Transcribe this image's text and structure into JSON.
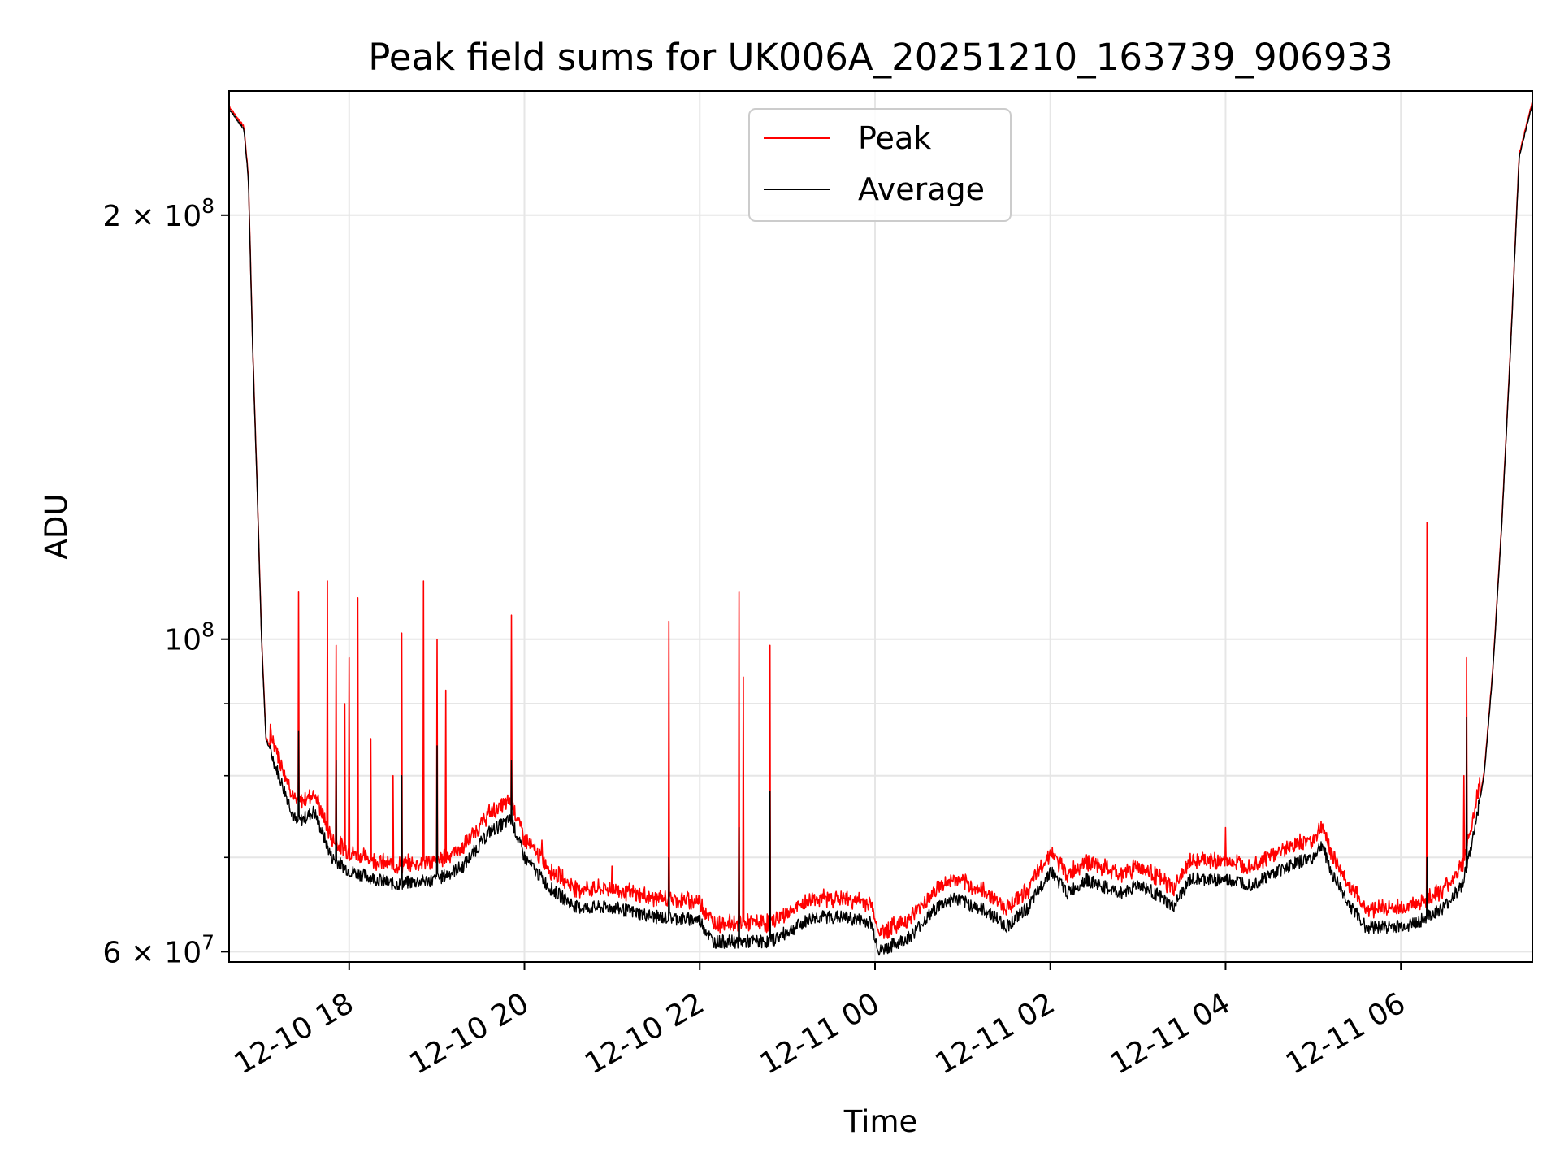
{
  "chart_data": {
    "type": "line",
    "scale_y": "log",
    "title": "Peak field sums for UK006A_20251210_163739_906933",
    "xlabel": "Time",
    "ylabel": "ADU",
    "xlim_hours": [
      16.63,
      31.5
    ],
    "ylim": [
      59000000,
      245000000
    ],
    "grid": true,
    "legend_position": "top-center",
    "x_ticks": [
      {
        "hours": 18,
        "label": "12-10 18"
      },
      {
        "hours": 20,
        "label": "12-10 20"
      },
      {
        "hours": 22,
        "label": "12-10 22"
      },
      {
        "hours": 24,
        "label": "12-11 00"
      },
      {
        "hours": 26,
        "label": "12-11 02"
      },
      {
        "hours": 28,
        "label": "12-11 04"
      },
      {
        "hours": 30,
        "label": "12-11 06"
      }
    ],
    "y_ticks": [
      {
        "value": 60000000,
        "base": "6 × 10",
        "exp": "7"
      },
      {
        "value": 100000000,
        "base": "10",
        "exp": "8"
      },
      {
        "value": 200000000,
        "base": "2 × 10",
        "exp": "8"
      }
    ],
    "y_minor_ticks": [
      70000000,
      80000000,
      90000000
    ],
    "series": [
      {
        "name": "Peak",
        "color": "#ff0000"
      },
      {
        "name": "Average",
        "color": "#000000"
      }
    ],
    "average_trend": [
      [
        16.63,
        238000000
      ],
      [
        16.8,
        230000000
      ],
      [
        16.85,
        212000000
      ],
      [
        16.9,
        160000000
      ],
      [
        16.95,
        128000000
      ],
      [
        17.0,
        100000000
      ],
      [
        17.05,
        85000000
      ],
      [
        17.2,
        80000000
      ],
      [
        17.4,
        74000000
      ],
      [
        17.6,
        75500000
      ],
      [
        17.8,
        70000000
      ],
      [
        18.0,
        68500000
      ],
      [
        18.5,
        67000000
      ],
      [
        19.0,
        67500000
      ],
      [
        19.3,
        69000000
      ],
      [
        19.6,
        73000000
      ],
      [
        19.85,
        74500000
      ],
      [
        20.0,
        70000000
      ],
      [
        20.3,
        66500000
      ],
      [
        20.6,
        64500000
      ],
      [
        21.0,
        64500000
      ],
      [
        21.5,
        63500000
      ],
      [
        22.0,
        63200000
      ],
      [
        22.15,
        61000000
      ],
      [
        22.8,
        61000000
      ],
      [
        23.3,
        63500000
      ],
      [
        23.6,
        63500000
      ],
      [
        23.95,
        63000000
      ],
      [
        24.05,
        60000000
      ],
      [
        24.4,
        61500000
      ],
      [
        24.7,
        64500000
      ],
      [
        24.9,
        65500000
      ],
      [
        25.3,
        64000000
      ],
      [
        25.5,
        62500000
      ],
      [
        25.75,
        64500000
      ],
      [
        26.0,
        68500000
      ],
      [
        26.2,
        66000000
      ],
      [
        26.4,
        67500000
      ],
      [
        26.8,
        66000000
      ],
      [
        27.0,
        67000000
      ],
      [
        27.2,
        66000000
      ],
      [
        27.4,
        64500000
      ],
      [
        27.6,
        67500000
      ],
      [
        28.0,
        67500000
      ],
      [
        28.3,
        67000000
      ],
      [
        28.7,
        69000000
      ],
      [
        29.0,
        70000000
      ],
      [
        29.1,
        71500000
      ],
      [
        29.2,
        68500000
      ],
      [
        29.4,
        65000000
      ],
      [
        29.6,
        62500000
      ],
      [
        29.8,
        62500000
      ],
      [
        30.0,
        62500000
      ],
      [
        30.2,
        63000000
      ],
      [
        30.5,
        64500000
      ],
      [
        30.7,
        67000000
      ],
      [
        30.8,
        71000000
      ],
      [
        30.95,
        80000000
      ],
      [
        31.05,
        95000000
      ],
      [
        31.15,
        120000000
      ],
      [
        31.25,
        160000000
      ],
      [
        31.35,
        220000000
      ],
      [
        31.5,
        240000000
      ]
    ],
    "peak_spikes": [
      [
        17.42,
        108000000
      ],
      [
        17.75,
        110000000
      ],
      [
        17.85,
        99000000
      ],
      [
        17.95,
        90000000
      ],
      [
        18.0,
        97000000
      ],
      [
        18.1,
        107000000
      ],
      [
        18.25,
        85000000
      ],
      [
        18.5,
        80000000
      ],
      [
        18.6,
        101000000
      ],
      [
        18.85,
        110000000
      ],
      [
        19.0,
        100000000
      ],
      [
        19.1,
        92000000
      ],
      [
        19.85,
        104000000
      ],
      [
        20.2,
        72000000
      ],
      [
        21.0,
        69000000
      ],
      [
        21.65,
        103000000
      ],
      [
        22.45,
        108000000
      ],
      [
        22.5,
        94000000
      ],
      [
        22.8,
        99000000
      ],
      [
        28.0,
        73500000
      ],
      [
        30.3,
        121000000
      ],
      [
        30.75,
        97000000
      ],
      [
        30.72,
        80000000
      ]
    ],
    "average_spikes": [
      [
        17.42,
        86000000
      ],
      [
        17.85,
        82000000
      ],
      [
        18.6,
        80000000
      ],
      [
        19.0,
        84000000
      ],
      [
        19.85,
        82000000
      ],
      [
        21.65,
        70000000
      ],
      [
        22.45,
        73500000
      ],
      [
        22.8,
        78000000
      ],
      [
        30.3,
        70000000
      ],
      [
        30.75,
        88000000
      ]
    ]
  }
}
